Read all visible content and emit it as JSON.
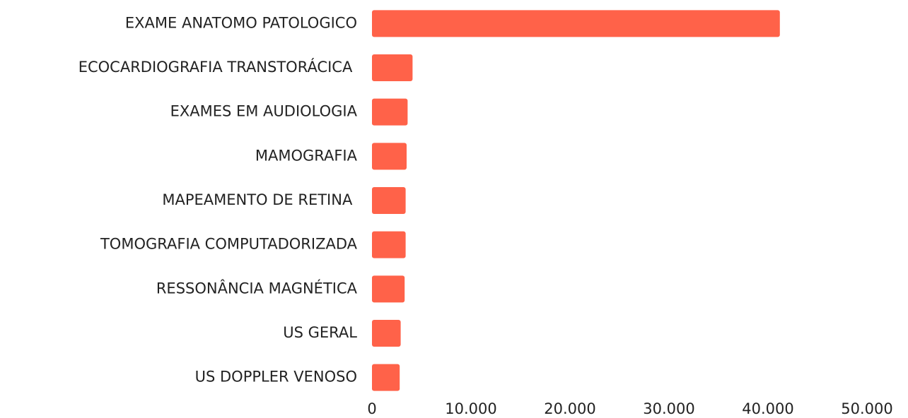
{
  "chart_data": {
    "type": "bar",
    "orientation": "horizontal",
    "categories": [
      "EXAME ANATOMO PATOLOGICO",
      "ECOCARDIOGRAFIA TRANSTORÁCICA ",
      "EXAMES EM AUDIOLOGIA",
      "MAMOGRAFIA",
      "MAPEAMENTO DE RETINA ",
      "TOMOGRAFIA COMPUTADORIZADA",
      "RESSONÂNCIA MAGNÉTICA",
      "US GERAL",
      "US DOPPLER VENOSO"
    ],
    "values": [
      41200,
      4100,
      3600,
      3500,
      3400,
      3400,
      3300,
      2900,
      2800
    ],
    "color": "#ff6249",
    "xlim": [
      0,
      50000
    ],
    "xticks": [
      0,
      {
        "value": 10000,
        "label": "10.000"
      },
      {
        "value": 20000,
        "label": "20.000"
      },
      {
        "value": 30000,
        "label": "30.000"
      },
      {
        "value": 40000,
        "label": "40.000"
      },
      {
        "value": 50000,
        "label": "50.000"
      }
    ],
    "grid": false
  }
}
